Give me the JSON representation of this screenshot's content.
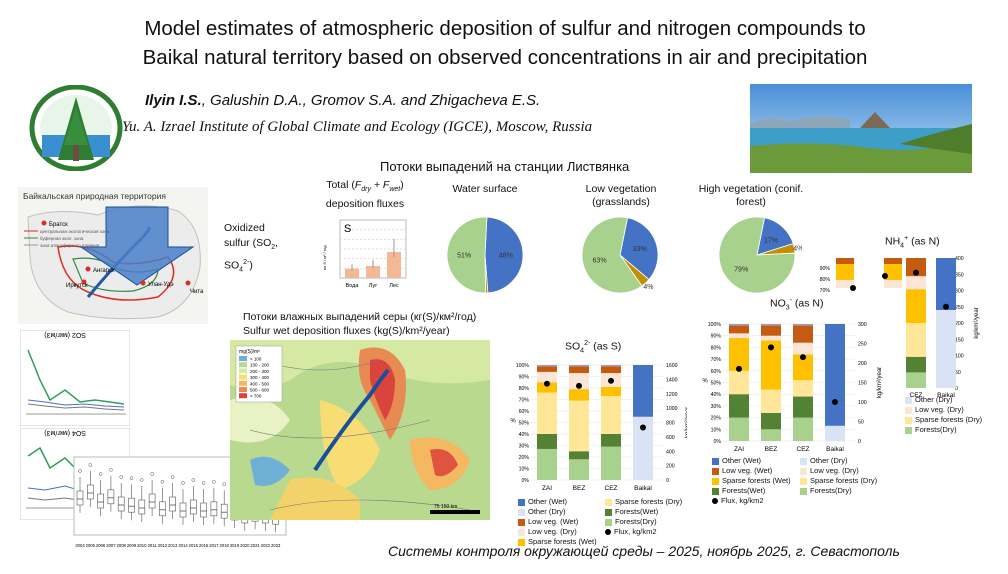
{
  "title_line1": "Model estimates of atmospheric deposition of sulfur and nitrogen compounds to",
  "title_line2": "Baikal natural territory based on observed concentrations in air and precipitation",
  "authors_lead": "Ilyin I.S.",
  "authors_rest": ", Galushin D.A., Gromov S.A. and Zhigacheva E.S.",
  "institute": "Yu. A. Izrael Institute of  Global Climate and Ecology (IGCE), Moscow, Russia",
  "station_heading": "Потоки выпадений на станции Листвянка",
  "footer": "Системы контроля окружающей среды – 2025, ноябрь 2025, г. Севастополь",
  "map": {
    "title": "Байкальская природная территория",
    "cities": [
      "Братск",
      "Ангарск",
      "Иркутск",
      "Улан-Удэ",
      "Чита"
    ],
    "legend": [
      "центральная экологическая зона",
      "буферная экол. зона",
      "зона атмосферного влияния"
    ]
  },
  "oxidized_label": "Oxidized sulfur (SO2, SO4 2-)",
  "oxidized_line1": "Oxidized",
  "oxidized_line2": "sulfur (SO",
  "oxidized_line2b": "2",
  "oxidized_line2c": ",",
  "oxidized_line3": "SO",
  "oxidized_line3b": "4",
  "oxidized_line3c": "2-",
  "oxidized_line3d": ")",
  "total_flux": {
    "title1": "Total (",
    "title_fdry": "F",
    "title_dry": "dry",
    "title_plus": " + F",
    "title_wet": "wet",
    "title2": ")",
    "title3": "deposition fluxes",
    "letter": "S",
    "ylabel": "мг S / м² / год",
    "chart_data": {
      "type": "bar",
      "categories": [
        "Вода",
        "Луг",
        "Лес"
      ],
      "values": [
        480,
        620,
        1350
      ],
      "ylim": [
        0,
        3000
      ]
    }
  },
  "pies": [
    {
      "title": "Water surface",
      "title2": "",
      "chart_data": {
        "type": "pie",
        "labels": [
          "48%",
          "1%",
          "51%"
        ],
        "values": [
          48,
          1,
          51
        ]
      }
    },
    {
      "title": "Low vegetation",
      "title2": "(grasslands)",
      "chart_data": {
        "type": "pie",
        "labels": [
          "33%",
          "4%",
          "63%"
        ],
        "values": [
          33,
          4,
          63
        ]
      }
    },
    {
      "title": "High vegetation (conif.",
      "title2": "forest)",
      "chart_data": {
        "type": "pie",
        "labels": [
          "17%",
          "4%",
          "79%"
        ],
        "values": [
          17,
          4,
          79
        ]
      }
    }
  ],
  "wet_map": {
    "title1": "Потоки влажных выпадений серы (кг(S)/км²/год)",
    "title2": "Sulfur wet deposition fluxes (kg(S)/km²/year)",
    "legend_title": "mg(S)/m²",
    "legend": [
      "< 100",
      "100 - 200",
      "200 - 300",
      "300 - 400",
      "400 - 500",
      "500 - 600",
      "> 700"
    ],
    "scale": "75      150 km"
  },
  "so2_panel": {
    "title": "SO2 (мкг/м3)"
  },
  "so4_panel": {
    "title": "SO4 (мкг/м3)"
  },
  "boxplot": {
    "years": [
      "2004",
      "2005",
      "2006",
      "2007",
      "2008",
      "2009",
      "2010",
      "2011",
      "2012",
      "2013",
      "2014",
      "2015",
      "2016",
      "2017",
      "2018",
      "2019",
      "2020",
      "2021",
      "2022",
      "2023"
    ]
  },
  "so4_chart": {
    "title": "SO",
    "title_sub": "4",
    "title_sup": "2-",
    "title_tail": " (as S)",
    "left_axis": "%",
    "right_axis": "kg/km²/year",
    "chart_data": {
      "type": "bar",
      "categories": [
        "ZAI",
        "BEZ",
        "CEZ",
        "Baikal"
      ],
      "series": [
        {
          "name": "Forests(Dry)",
          "values": [
            27,
            18,
            29,
            0
          ]
        },
        {
          "name": "Forests(Wet)",
          "values": [
            13,
            7,
            11,
            0
          ]
        },
        {
          "name": "Sparse forests (Dry)",
          "values": [
            36,
            44,
            33,
            0
          ]
        },
        {
          "name": "Sparse forests (Wet)",
          "values": [
            9,
            10,
            8,
            0
          ]
        },
        {
          "name": "Low veg. (Dry)",
          "values": [
            9,
            14,
            12,
            0
          ]
        },
        {
          "name": "Low veg. (Wet)",
          "values": [
            5,
            6,
            6,
            0
          ]
        },
        {
          "name": "Other (Dry)",
          "values": [
            0.5,
            0.5,
            0.5,
            55
          ]
        },
        {
          "name": "Other (Wet)",
          "values": [
            0.5,
            0.5,
            0.5,
            45
          ]
        }
      ],
      "flux": [
        1340,
        1310,
        1380,
        730
      ],
      "ylim_left": [
        0,
        100
      ],
      "ylim_right": [
        0,
        1600
      ],
      "left_ticks": [
        "0%",
        "10%",
        "20%",
        "30%",
        "40%",
        "50%",
        "60%",
        "70%",
        "80%",
        "90%",
        "100%"
      ],
      "right_ticks": [
        "0",
        "200",
        "400",
        "600",
        "800",
        "1000",
        "1200",
        "1400",
        "1600"
      ]
    },
    "legend": [
      {
        "label": "Other (Wet)",
        "color": "#4472c4"
      },
      {
        "label": "Other (Dry)",
        "color": "#dae3f3"
      },
      {
        "label": "Low veg. (Wet)",
        "color": "#c55a11"
      },
      {
        "label": "Low veg. (Dry)",
        "color": "#fbe5d6"
      },
      {
        "label": "Sparse forests (Wet)",
        "color": "#ffc000"
      },
      {
        "label": "Sparse forests (Dry)",
        "color": "#ffe699"
      },
      {
        "label": "Forests(Wet)",
        "color": "#548235"
      },
      {
        "label": "Forests(Dry)",
        "color": "#a9d18e"
      }
    ],
    "flux_label": "Flux, kg/km2"
  },
  "no3_chart": {
    "title": "NO",
    "title_sub": "3",
    "title_sup": "-",
    "title_tail": " (as N)",
    "left_axis": "%",
    "right_axis": "kg/km²/year",
    "chart_data": {
      "type": "bar",
      "categories": [
        "ZAI",
        "BEZ",
        "CEZ",
        "Baikal"
      ],
      "series": [
        {
          "name": "Forests(Dry)",
          "values": [
            20,
            10,
            20,
            0
          ]
        },
        {
          "name": "Forests(Wet)",
          "values": [
            20,
            14,
            18,
            0
          ]
        },
        {
          "name": "Sparse forests (Dry)",
          "values": [
            20,
            20,
            14,
            0
          ]
        },
        {
          "name": "Sparse forests (Wet)",
          "values": [
            28,
            42,
            22,
            0
          ]
        },
        {
          "name": "Low veg. (Dry)",
          "values": [
            4,
            4,
            10,
            0
          ]
        },
        {
          "name": "Low veg. (Wet)",
          "values": [
            7,
            9,
            15,
            0
          ]
        },
        {
          "name": "Other (Dry)",
          "values": [
            0.5,
            0.5,
            0.5,
            13
          ]
        },
        {
          "name": "Other (Wet)",
          "values": [
            0.5,
            0.5,
            0.5,
            87
          ]
        }
      ],
      "flux": [
        185,
        240,
        215,
        100
      ],
      "ylim_left": [
        0,
        100
      ],
      "ylim_right": [
        0,
        300
      ],
      "left_ticks": [
        "0%",
        "10%",
        "20%",
        "30%",
        "40%",
        "50%",
        "60%",
        "70%",
        "80%",
        "90%",
        "100%"
      ],
      "right_ticks": [
        "0",
        "50",
        "100",
        "150",
        "200",
        "250",
        "300"
      ]
    },
    "legend_left": [
      {
        "label": "Other (Wet)",
        "color": "#4472c4"
      },
      {
        "label": "Low veg. (Wet)",
        "color": "#c55a11"
      },
      {
        "label": "Sparse forests (Wet)",
        "color": "#ffc000"
      },
      {
        "label": "Forests(Wet)",
        "color": "#548235"
      }
    ],
    "legend_right": [
      {
        "label": "Other (Dry)",
        "color": "#dae3f3"
      },
      {
        "label": "Low veg. (Dry)",
        "color": "#fbe5d6"
      },
      {
        "label": "Sparse forests (Dry)",
        "color": "#ffe699"
      },
      {
        "label": "Forests(Dry)",
        "color": "#a9d18e"
      }
    ],
    "flux_label": "Flux, kg/km2"
  },
  "nh4_chart": {
    "title": "NH",
    "title_sub": "4",
    "title_sup": "+",
    "title_tail": " (as N)",
    "right_axis": "kg/km²/year",
    "chart_data": {
      "type": "bar",
      "categories": [
        "CEZ",
        "Baikal"
      ],
      "series": [
        {
          "name": "Forests(Dry)",
          "values": [
            12,
            0
          ]
        },
        {
          "name": "Forests(Wet)",
          "values": [
            12,
            0
          ]
        },
        {
          "name": "Sparse forests (Dry)",
          "values": [
            26,
            0
          ]
        },
        {
          "name": "Sparse forests (Wet)",
          "values": [
            26,
            0
          ]
        },
        {
          "name": "Low veg. (Dry)",
          "values": [
            10,
            0
          ]
        },
        {
          "name": "Low veg. (Wet)",
          "values": [
            14,
            0
          ]
        },
        {
          "name": "Other (Dry)",
          "values": [
            0,
            60
          ]
        },
        {
          "name": "Other (Wet)",
          "values": [
            0,
            40
          ]
        }
      ],
      "flux": [
        355,
        250
      ],
      "ylim_right": [
        0,
        400
      ],
      "left_ticks": [
        "90%",
        "80%",
        "70%"
      ],
      "right_ticks": [
        "0",
        "50",
        "100",
        "150",
        "200",
        "250",
        "300",
        "350",
        "400"
      ]
    },
    "legend": [
      {
        "label": "Other (Dry)",
        "color": "#dae3f3"
      },
      {
        "label": "Low veg. (Dry)",
        "color": "#fbe5d6"
      },
      {
        "label": "Sparse forests (Dry)",
        "color": "#ffe699"
      },
      {
        "label": "Forests(Dry)",
        "color": "#a9d18e"
      }
    ]
  },
  "colors": {
    "blue": "#4472c4",
    "orange": "#c55a11",
    "yellow": "#ffc000",
    "green": "#548235",
    "lightgreen": "#a9d18e",
    "lightyellow": "#ffe699",
    "lightorange": "#fbe5d6",
    "lightblue": "#dae3f3"
  }
}
